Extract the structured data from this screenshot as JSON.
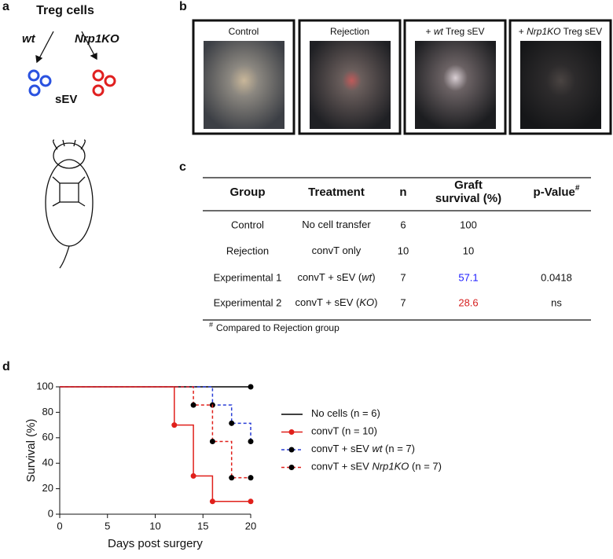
{
  "panel_a": {
    "label": "a",
    "title": "Treg cells",
    "left": "wt",
    "right": "Nrp1KO",
    "center": "sEV"
  },
  "panel_b": {
    "label": "b",
    "captions": [
      [
        {
          "text": "Control"
        }
      ],
      [
        {
          "text": "Rejection"
        }
      ],
      [
        {
          "text": "+ "
        },
        {
          "text": "wt",
          "em": true
        },
        {
          "text": " Treg sEV"
        }
      ],
      [
        {
          "text": "+ "
        },
        {
          "text": "Nrp1KO",
          "em": true
        },
        {
          "text": " Treg sEV"
        }
      ]
    ]
  },
  "table": {
    "label": "c",
    "header": [
      [
        "Group"
      ],
      [
        "Treatment"
      ],
      [
        "n"
      ],
      [
        "Graft",
        "survival (%)"
      ],
      [
        "p-Value"
      ]
    ],
    "p_mark": "#",
    "rows": [
      {
        "group": "Control",
        "treatment": [
          {
            "text": "No cell transfer"
          }
        ],
        "n": 6,
        "survival": 100,
        "p": null
      },
      {
        "group": "Rejection",
        "treatment": [
          {
            "text": "convT only"
          }
        ],
        "n": 10,
        "survival": 10,
        "p": null
      },
      {
        "group": "Experimental 1",
        "treatment": [
          {
            "text": "convT + sEV ("
          },
          {
            "text": "wt",
            "em": true
          },
          {
            "text": ")"
          }
        ],
        "n": 7,
        "survival": 57.1,
        "survival_color": "#1a1aff",
        "p": 0.0418
      },
      {
        "group": "Experimental 2",
        "treatment": [
          {
            "text": "convT + sEV ("
          },
          {
            "text": "KO",
            "em": true
          },
          {
            "text": ")"
          }
        ],
        "n": 7,
        "survival": 28.6,
        "survival_color": "#d62020",
        "p": "ns"
      }
    ],
    "footnote": {
      "mark": "#",
      "text": "Compared to Rejection group"
    }
  },
  "chart_data": {
    "type": "step",
    "label": "d",
    "xlabel": "Days post surgery",
    "ylabel": "Survival (%)",
    "xlim": [
      0,
      20
    ],
    "ylim": [
      0,
      100
    ],
    "xticks": [
      0,
      5,
      10,
      15,
      20
    ],
    "yticks": [
      0,
      20,
      40,
      60,
      80,
      100
    ],
    "series": [
      {
        "name": [
          {
            "text": "No cells (n = 6)"
          }
        ],
        "color": "#000000",
        "marker_color": "#000000",
        "dash": false,
        "legend_marker": false,
        "x": [
          0,
          20
        ],
        "values": [
          100,
          100
        ]
      },
      {
        "name": [
          {
            "text": "convT (n = 10)"
          }
        ],
        "color": "#e0201b",
        "marker_color": "#e0201b",
        "dash": false,
        "x": [
          0,
          12,
          14,
          16,
          20
        ],
        "values": [
          100,
          70,
          30,
          10,
          10
        ]
      },
      {
        "name": [
          {
            "text": "convT + sEV "
          },
          {
            "text": "wt",
            "em": true
          },
          {
            "text": " (n = 7)"
          }
        ],
        "color": "#2a3fd6",
        "marker_color": "#000000",
        "dash": true,
        "x": [
          0,
          16,
          18,
          20
        ],
        "values": [
          100,
          85.7,
          71.4,
          57.1
        ]
      },
      {
        "name": [
          {
            "text": "convT + sEV "
          },
          {
            "text": "Nrp1KO",
            "em": true
          },
          {
            "text": " (n = 7)"
          }
        ],
        "color": "#e0201b",
        "marker_color": "#000000",
        "dash": true,
        "x": [
          0,
          14,
          16,
          18,
          20
        ],
        "values": [
          100,
          85.7,
          57.1,
          28.6,
          28.6
        ]
      }
    ]
  }
}
